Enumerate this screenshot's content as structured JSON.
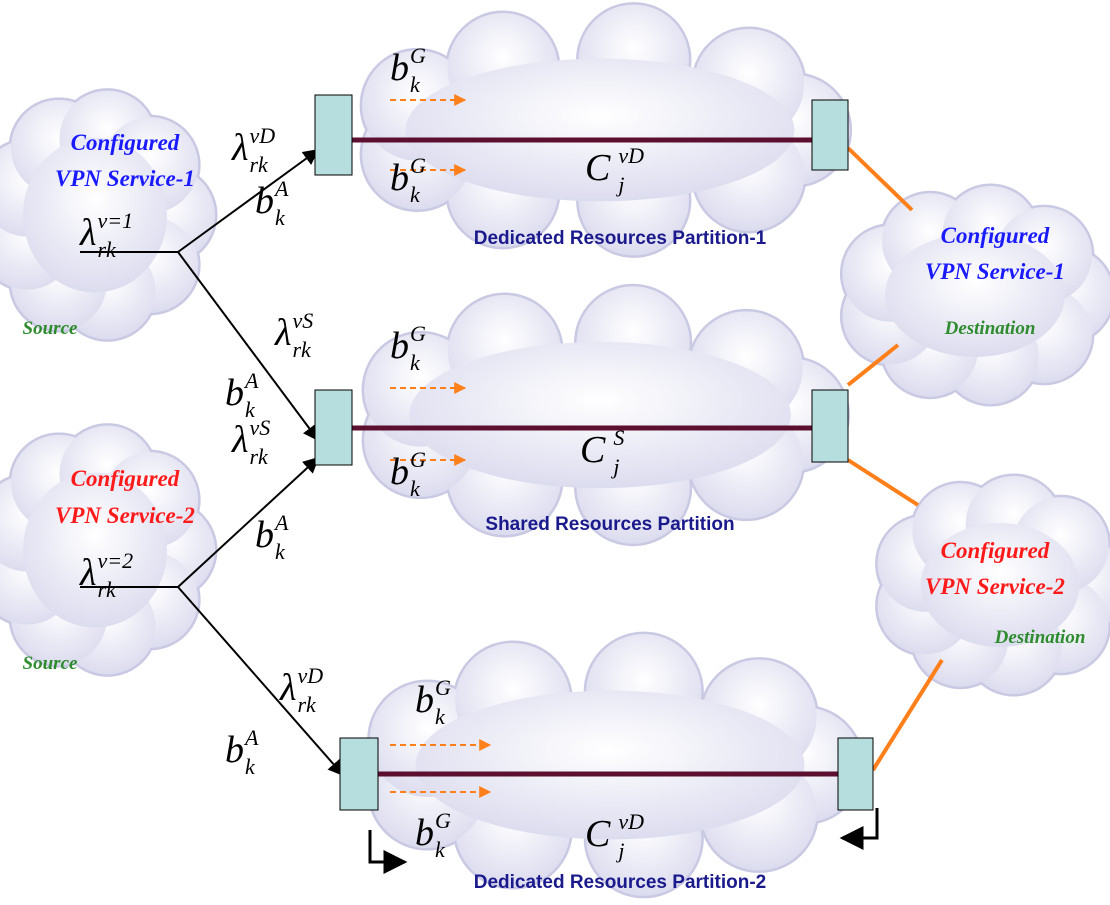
{
  "services": [
    {
      "lines": [
        "Configured",
        "VPN Service-1"
      ]
    },
    {
      "lines": [
        "Configured",
        "VPN Service-2"
      ]
    },
    {
      "lines": [
        "Configured",
        "VPN Service-1"
      ]
    },
    {
      "lines": [
        "Configured",
        "VPN Service-2"
      ]
    }
  ],
  "sources": [
    "Source",
    "Source"
  ],
  "destinations": [
    "Destination",
    "Destination"
  ],
  "partitions": [
    "Dedicated Resources Partition-1",
    "Shared Resources Partition",
    "Dedicated Resources Partition-2"
  ],
  "symbols": [
    {
      "base": "λ",
      "sup": "vD",
      "sub": "rk"
    },
    {
      "base": "b",
      "sup": "G",
      "sub": "k"
    },
    {
      "base": "b",
      "sup": "A",
      "sub": "k"
    },
    {
      "base": "b",
      "sup": "G",
      "sub": "k"
    },
    {
      "base": "C",
      "sup": "vD",
      "sub": "j"
    },
    {
      "base": "λ",
      "sup": "v=1",
      "sub": "rk"
    },
    {
      "base": "λ",
      "sup": "vS",
      "sub": "rk"
    },
    {
      "base": "b",
      "sup": "G",
      "sub": "k"
    },
    {
      "base": "b",
      "sup": "A",
      "sub": "k"
    },
    {
      "base": "b",
      "sup": "G",
      "sub": "k"
    },
    {
      "base": "C",
      "sup": "S",
      "sub": "j"
    },
    {
      "base": "λ",
      "sup": "vS",
      "sub": "rk"
    },
    {
      "base": "b",
      "sup": "A",
      "sub": "k"
    },
    {
      "base": "λ",
      "sup": "v=2",
      "sub": "rk"
    },
    {
      "base": "λ",
      "sup": "vD",
      "sub": "rk"
    },
    {
      "base": "b",
      "sup": "G",
      "sub": "k"
    },
    {
      "base": "b",
      "sup": "A",
      "sub": "k"
    },
    {
      "base": "b",
      "sup": "G",
      "sub": "k"
    },
    {
      "base": "C",
      "sup": "vD",
      "sub": "j"
    }
  ]
}
